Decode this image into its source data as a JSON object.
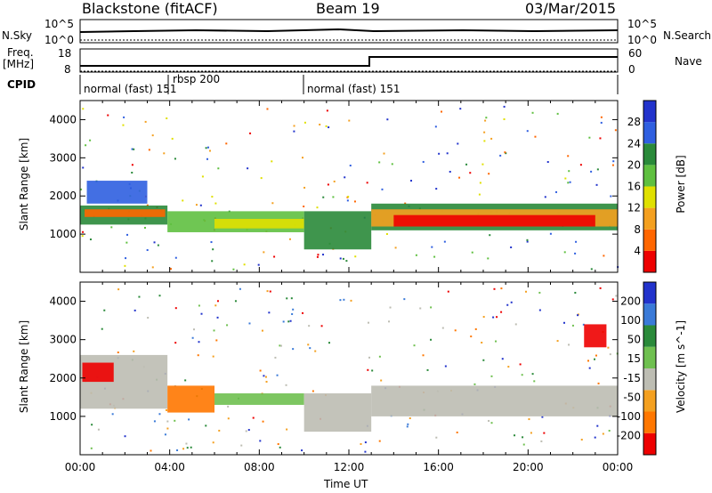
{
  "header": {
    "station": "Blackstone (fitACF)",
    "beam": "Beam 19",
    "date": "03/Mar/2015"
  },
  "left_labels": {
    "nsky": "N.Sky",
    "freq": "Freq.",
    "freq_unit": "[MHz]",
    "cpid": "CPID"
  },
  "right_labels": {
    "nsearch": "N.Search",
    "nave": "Nave"
  },
  "noise_axis": {
    "left_ticks": [
      "10^5",
      "10^0"
    ],
    "right_ticks": [
      "10^5",
      "10^0"
    ]
  },
  "freq_axis": {
    "left_ticks": [
      "18",
      "8"
    ],
    "right_ticks": [
      "60",
      "0"
    ]
  },
  "cpid_segments": [
    {
      "label": "normal (fast) 151",
      "start_h": 0.0,
      "end_h": 3.9
    },
    {
      "label": "rbsp 200",
      "start_h": 3.9,
      "end_h": 10.0
    },
    {
      "label": "normal (fast) 151",
      "start_h": 10.0,
      "end_h": 24.0
    }
  ],
  "colors": {
    "power": [
      "#2233cc",
      "#2f5fe0",
      "#2a8a3a",
      "#5fc040",
      "#e0e000",
      "#f4a020",
      "#ff6600",
      "#ee0000"
    ],
    "velocity": [
      "#2233cc",
      "#3a7ad8",
      "#2a8a3a",
      "#6fc050",
      "#bdbdb3",
      "#f4a020",
      "#ff7700",
      "#ee0000"
    ]
  },
  "chart_data": [
    {
      "type": "heatmap",
      "name": "power-panel",
      "ylabel": "Slant Range [km]",
      "colorbar_label": "Power [dB]",
      "colorbar_ticks": [
        "28",
        "24",
        "20",
        "16",
        "12",
        "8",
        "4"
      ],
      "x_range_h": [
        0,
        24
      ],
      "ylim": [
        0,
        4500
      ],
      "y_ticks": [
        "4000",
        "3000",
        "2000",
        "1000"
      ],
      "bands": [
        {
          "x0": 0.0,
          "x1": 3.9,
          "r0": 1250,
          "r1": 1750,
          "cls": 2
        },
        {
          "x0": 0.2,
          "x1": 3.8,
          "r0": 1450,
          "r1": 1650,
          "cls": 6
        },
        {
          "x0": 3.9,
          "x1": 10.0,
          "r0": 1050,
          "r1": 1600,
          "cls": 3
        },
        {
          "x0": 6.0,
          "x1": 10.0,
          "r0": 1150,
          "r1": 1400,
          "cls": 4
        },
        {
          "x0": 10.0,
          "x1": 13.0,
          "r0": 600,
          "r1": 1600,
          "cls": 2
        },
        {
          "x0": 13.0,
          "x1": 24.0,
          "r0": 1100,
          "r1": 1800,
          "cls": 2
        },
        {
          "x0": 13.0,
          "x1": 24.0,
          "r0": 1200,
          "r1": 1650,
          "cls": 5
        },
        {
          "x0": 14.0,
          "x1": 23.0,
          "r0": 1200,
          "r1": 1500,
          "cls": 7
        },
        {
          "x0": 0.3,
          "x1": 3.0,
          "r0": 1800,
          "r1": 2400,
          "cls": 1
        }
      ]
    },
    {
      "type": "heatmap",
      "name": "velocity-panel",
      "ylabel": "Slant Range [km]",
      "colorbar_label": "Velocity [m s^-1]",
      "colorbar_ticks": [
        "200",
        "100",
        "50",
        "15",
        "-15",
        "-50",
        "-100",
        "-200"
      ],
      "x_range_h": [
        0,
        24
      ],
      "ylim": [
        0,
        4500
      ],
      "y_ticks": [
        "4000",
        "3000",
        "2000",
        "1000"
      ],
      "x_ticks": [
        "00:00",
        "04:00",
        "08:00",
        "12:00",
        "16:00",
        "20:00",
        "00:00"
      ],
      "xlabel": "Time UT",
      "bands": [
        {
          "x0": 0.0,
          "x1": 3.9,
          "r0": 1200,
          "r1": 2600,
          "cls": 4
        },
        {
          "x0": 0.1,
          "x1": 1.5,
          "r0": 1900,
          "r1": 2400,
          "cls": 7
        },
        {
          "x0": 3.9,
          "x1": 6.0,
          "r0": 1100,
          "r1": 1800,
          "cls": 6
        },
        {
          "x0": 6.0,
          "x1": 10.0,
          "r0": 1300,
          "r1": 1600,
          "cls": 3
        },
        {
          "x0": 10.0,
          "x1": 13.0,
          "r0": 600,
          "r1": 1600,
          "cls": 4
        },
        {
          "x0": 13.0,
          "x1": 24.0,
          "r0": 1000,
          "r1": 1800,
          "cls": 4
        },
        {
          "x0": 22.5,
          "x1": 23.5,
          "r0": 2800,
          "r1": 3400,
          "cls": 7
        }
      ]
    }
  ]
}
